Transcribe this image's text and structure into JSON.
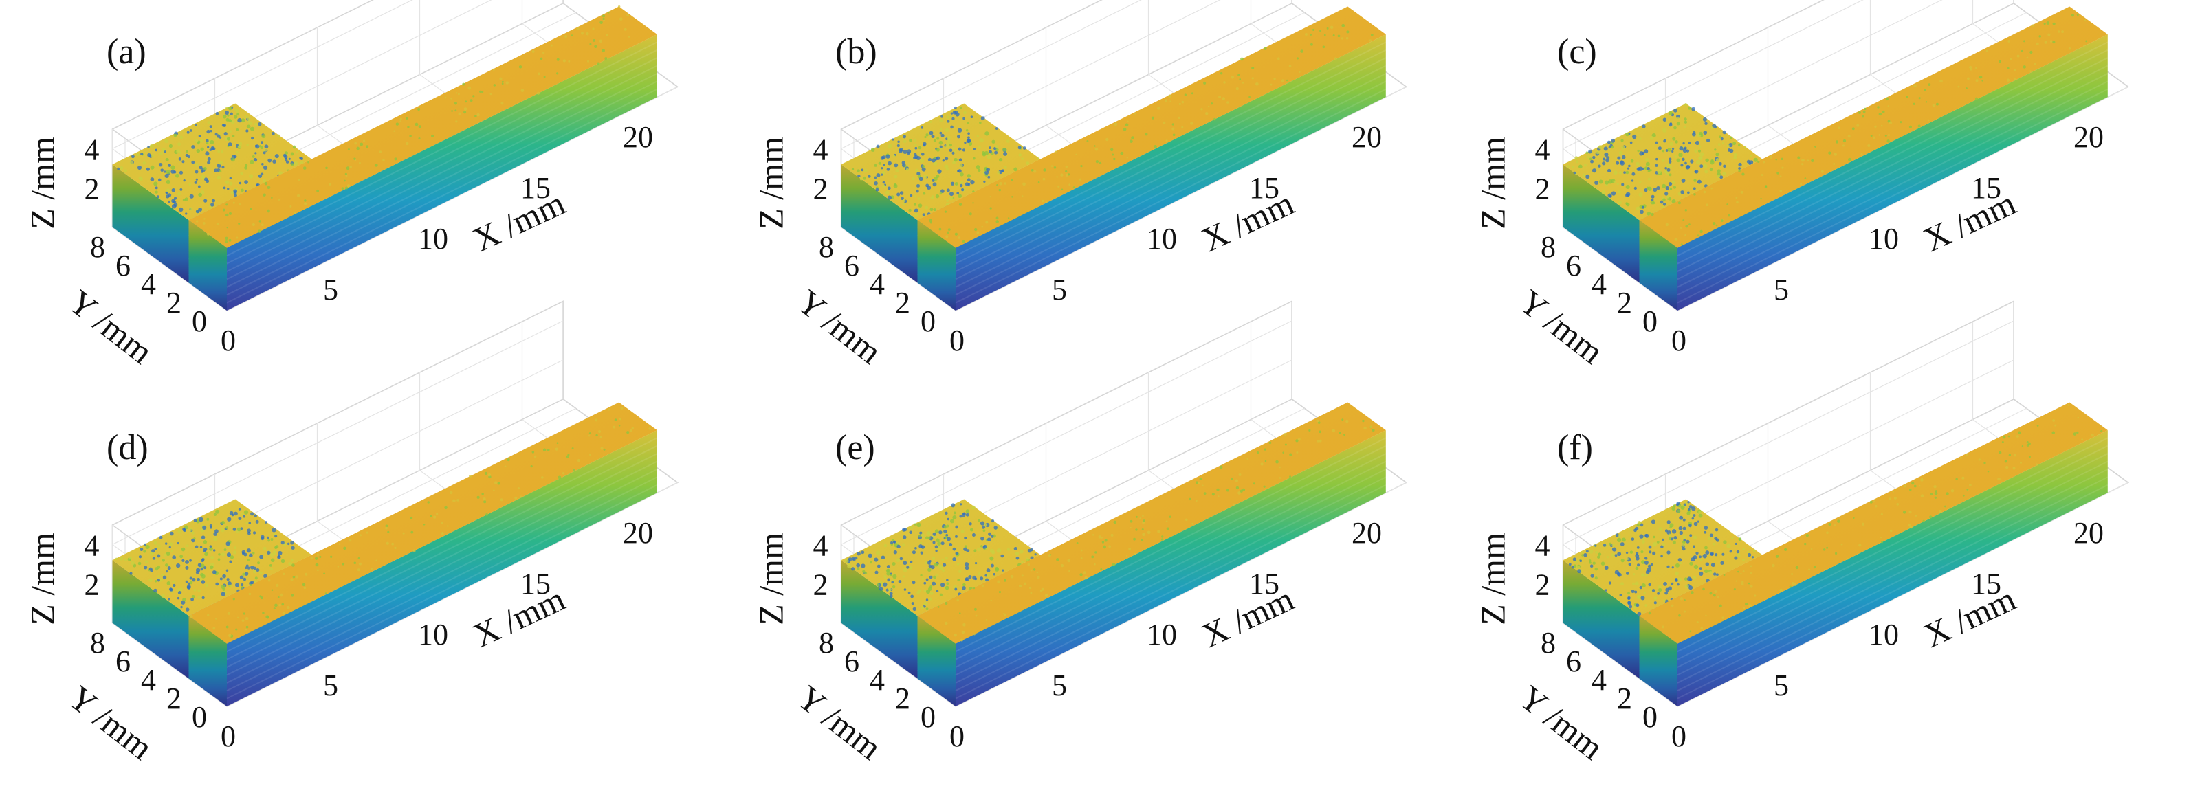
{
  "figure": {
    "background": "#ffffff"
  },
  "colormap": [
    "#3b3f9e",
    "#2f6fc2",
    "#1f9bc2",
    "#2cb58a",
    "#8cc63f",
    "#d7c13a",
    "#e6ae2e"
  ],
  "chart_data": [
    {
      "type": "scatter3d",
      "panel_label": "(a)",
      "xlabel": "X /mm",
      "ylabel": "Y /mm",
      "zlabel": "Z /mm",
      "xticks": [
        0,
        5,
        10,
        15,
        20
      ],
      "yticks": [
        0,
        2,
        4,
        6,
        8
      ],
      "zticks": [
        2,
        4
      ],
      "xlim": [
        0,
        22
      ],
      "ylim": [
        0,
        9
      ],
      "zlim": [
        0,
        5
      ],
      "objects": [
        {
          "name": "",
          "x": [
            0,
            21
          ],
          "y": [
            0,
            3
          ],
          "z": [
            0,
            3.2
          ]
        },
        {
          "name": "",
          "x": [
            0,
            6
          ],
          "y": [
            3,
            9
          ],
          "z": [
            0,
            3.2
          ]
        }
      ]
    },
    {
      "type": "scatter3d",
      "panel_label": "(b)",
      "xlabel": "X /mm",
      "ylabel": "Y /mm",
      "zlabel": "Z /mm",
      "xticks": [
        0,
        5,
        10,
        15,
        20
      ],
      "yticks": [
        0,
        2,
        4,
        6,
        8
      ],
      "zticks": [
        2,
        4
      ],
      "xlim": [
        0,
        22
      ],
      "ylim": [
        0,
        9
      ],
      "zlim": [
        0,
        5
      ],
      "objects": [
        {
          "name": "",
          "x": [
            0,
            21
          ],
          "y": [
            0,
            3
          ],
          "z": [
            0,
            3.2
          ]
        },
        {
          "name": "",
          "x": [
            0,
            6
          ],
          "y": [
            3,
            9
          ],
          "z": [
            0,
            3.2
          ]
        }
      ]
    },
    {
      "type": "scatter3d",
      "panel_label": "(c)",
      "xlabel": "X /mm",
      "ylabel": "Y /mm",
      "zlabel": "Z /mm",
      "xticks": [
        0,
        5,
        10,
        15,
        20
      ],
      "yticks": [
        0,
        2,
        4,
        6,
        8
      ],
      "zticks": [
        2,
        4
      ],
      "xlim": [
        0,
        22
      ],
      "ylim": [
        0,
        9
      ],
      "zlim": [
        0,
        5
      ],
      "objects": [
        {
          "name": "",
          "x": [
            0,
            21
          ],
          "y": [
            0,
            3
          ],
          "z": [
            0,
            3.2
          ]
        },
        {
          "name": "",
          "x": [
            0,
            6
          ],
          "y": [
            3,
            9
          ],
          "z": [
            0,
            3.2
          ]
        }
      ]
    },
    {
      "type": "scatter3d",
      "panel_label": "(d)",
      "xlabel": "X /mm",
      "ylabel": "Y /mm",
      "zlabel": "Z /mm",
      "xticks": [
        0,
        5,
        10,
        15,
        20
      ],
      "yticks": [
        0,
        2,
        4,
        6,
        8
      ],
      "zticks": [
        2,
        4
      ],
      "xlim": [
        0,
        22
      ],
      "ylim": [
        0,
        9
      ],
      "zlim": [
        0,
        5
      ],
      "objects": [
        {
          "name": "",
          "x": [
            0,
            21
          ],
          "y": [
            0,
            3
          ],
          "z": [
            0,
            3.2
          ]
        },
        {
          "name": "",
          "x": [
            0,
            6
          ],
          "y": [
            3,
            9
          ],
          "z": [
            0,
            3.2
          ]
        }
      ]
    },
    {
      "type": "scatter3d",
      "panel_label": "(e)",
      "xlabel": "X /mm",
      "ylabel": "Y /mm",
      "zlabel": "Z /mm",
      "xticks": [
        0,
        5,
        10,
        15,
        20
      ],
      "yticks": [
        0,
        2,
        4,
        6,
        8
      ],
      "zticks": [
        2,
        4
      ],
      "xlim": [
        0,
        22
      ],
      "ylim": [
        0,
        9
      ],
      "zlim": [
        0,
        5
      ],
      "objects": [
        {
          "name": "",
          "x": [
            0,
            21
          ],
          "y": [
            0,
            3
          ],
          "z": [
            0,
            3.2
          ]
        },
        {
          "name": "",
          "x": [
            0,
            6
          ],
          "y": [
            3,
            9
          ],
          "z": [
            0,
            3.2
          ]
        }
      ]
    },
    {
      "type": "scatter3d",
      "panel_label": "(f)",
      "xlabel": "X /mm",
      "ylabel": "Y /mm",
      "zlabel": "Z /mm",
      "xticks": [
        0,
        5,
        10,
        15,
        20
      ],
      "yticks": [
        0,
        2,
        4,
        6,
        8
      ],
      "zticks": [
        2,
        4
      ],
      "xlim": [
        0,
        22
      ],
      "ylim": [
        0,
        9
      ],
      "zlim": [
        0,
        5
      ],
      "objects": [
        {
          "name": "",
          "x": [
            0,
            21
          ],
          "y": [
            0,
            3
          ],
          "z": [
            0,
            3.2
          ]
        },
        {
          "name": "",
          "x": [
            0,
            6
          ],
          "y": [
            3,
            9
          ],
          "z": [
            0,
            3.2
          ]
        }
      ]
    }
  ]
}
